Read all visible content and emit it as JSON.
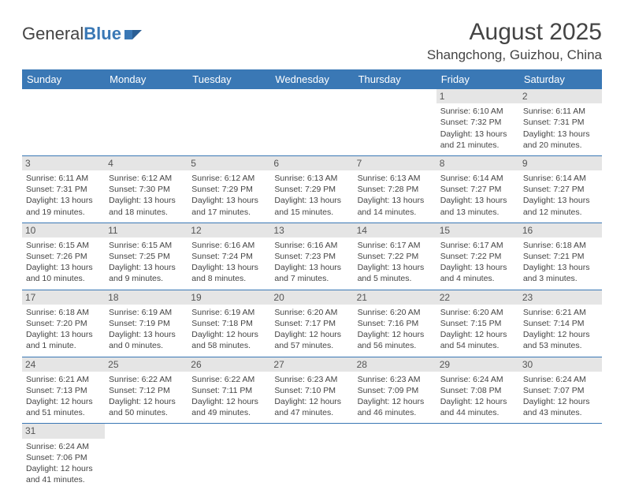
{
  "brand": {
    "part1": "General",
    "part2": "Blue"
  },
  "title": "August 2025",
  "location": "Shangchong, Guizhou, China",
  "colors": {
    "header_bg": "#3a78b5",
    "header_text": "#ffffff",
    "daynum_bg": "#e5e5e5",
    "border": "#3a78b5",
    "text": "#444444"
  },
  "weekdays": [
    "Sunday",
    "Monday",
    "Tuesday",
    "Wednesday",
    "Thursday",
    "Friday",
    "Saturday"
  ],
  "weeks": [
    [
      null,
      null,
      null,
      null,
      null,
      {
        "n": "1",
        "sr": "Sunrise: 6:10 AM",
        "ss": "Sunset: 7:32 PM",
        "d1": "Daylight: 13 hours",
        "d2": "and 21 minutes."
      },
      {
        "n": "2",
        "sr": "Sunrise: 6:11 AM",
        "ss": "Sunset: 7:31 PM",
        "d1": "Daylight: 13 hours",
        "d2": "and 20 minutes."
      }
    ],
    [
      {
        "n": "3",
        "sr": "Sunrise: 6:11 AM",
        "ss": "Sunset: 7:31 PM",
        "d1": "Daylight: 13 hours",
        "d2": "and 19 minutes."
      },
      {
        "n": "4",
        "sr": "Sunrise: 6:12 AM",
        "ss": "Sunset: 7:30 PM",
        "d1": "Daylight: 13 hours",
        "d2": "and 18 minutes."
      },
      {
        "n": "5",
        "sr": "Sunrise: 6:12 AM",
        "ss": "Sunset: 7:29 PM",
        "d1": "Daylight: 13 hours",
        "d2": "and 17 minutes."
      },
      {
        "n": "6",
        "sr": "Sunrise: 6:13 AM",
        "ss": "Sunset: 7:29 PM",
        "d1": "Daylight: 13 hours",
        "d2": "and 15 minutes."
      },
      {
        "n": "7",
        "sr": "Sunrise: 6:13 AM",
        "ss": "Sunset: 7:28 PM",
        "d1": "Daylight: 13 hours",
        "d2": "and 14 minutes."
      },
      {
        "n": "8",
        "sr": "Sunrise: 6:14 AM",
        "ss": "Sunset: 7:27 PM",
        "d1": "Daylight: 13 hours",
        "d2": "and 13 minutes."
      },
      {
        "n": "9",
        "sr": "Sunrise: 6:14 AM",
        "ss": "Sunset: 7:27 PM",
        "d1": "Daylight: 13 hours",
        "d2": "and 12 minutes."
      }
    ],
    [
      {
        "n": "10",
        "sr": "Sunrise: 6:15 AM",
        "ss": "Sunset: 7:26 PM",
        "d1": "Daylight: 13 hours",
        "d2": "and 10 minutes."
      },
      {
        "n": "11",
        "sr": "Sunrise: 6:15 AM",
        "ss": "Sunset: 7:25 PM",
        "d1": "Daylight: 13 hours",
        "d2": "and 9 minutes."
      },
      {
        "n": "12",
        "sr": "Sunrise: 6:16 AM",
        "ss": "Sunset: 7:24 PM",
        "d1": "Daylight: 13 hours",
        "d2": "and 8 minutes."
      },
      {
        "n": "13",
        "sr": "Sunrise: 6:16 AM",
        "ss": "Sunset: 7:23 PM",
        "d1": "Daylight: 13 hours",
        "d2": "and 7 minutes."
      },
      {
        "n": "14",
        "sr": "Sunrise: 6:17 AM",
        "ss": "Sunset: 7:22 PM",
        "d1": "Daylight: 13 hours",
        "d2": "and 5 minutes."
      },
      {
        "n": "15",
        "sr": "Sunrise: 6:17 AM",
        "ss": "Sunset: 7:22 PM",
        "d1": "Daylight: 13 hours",
        "d2": "and 4 minutes."
      },
      {
        "n": "16",
        "sr": "Sunrise: 6:18 AM",
        "ss": "Sunset: 7:21 PM",
        "d1": "Daylight: 13 hours",
        "d2": "and 3 minutes."
      }
    ],
    [
      {
        "n": "17",
        "sr": "Sunrise: 6:18 AM",
        "ss": "Sunset: 7:20 PM",
        "d1": "Daylight: 13 hours",
        "d2": "and 1 minute."
      },
      {
        "n": "18",
        "sr": "Sunrise: 6:19 AM",
        "ss": "Sunset: 7:19 PM",
        "d1": "Daylight: 13 hours",
        "d2": "and 0 minutes."
      },
      {
        "n": "19",
        "sr": "Sunrise: 6:19 AM",
        "ss": "Sunset: 7:18 PM",
        "d1": "Daylight: 12 hours",
        "d2": "and 58 minutes."
      },
      {
        "n": "20",
        "sr": "Sunrise: 6:20 AM",
        "ss": "Sunset: 7:17 PM",
        "d1": "Daylight: 12 hours",
        "d2": "and 57 minutes."
      },
      {
        "n": "21",
        "sr": "Sunrise: 6:20 AM",
        "ss": "Sunset: 7:16 PM",
        "d1": "Daylight: 12 hours",
        "d2": "and 56 minutes."
      },
      {
        "n": "22",
        "sr": "Sunrise: 6:20 AM",
        "ss": "Sunset: 7:15 PM",
        "d1": "Daylight: 12 hours",
        "d2": "and 54 minutes."
      },
      {
        "n": "23",
        "sr": "Sunrise: 6:21 AM",
        "ss": "Sunset: 7:14 PM",
        "d1": "Daylight: 12 hours",
        "d2": "and 53 minutes."
      }
    ],
    [
      {
        "n": "24",
        "sr": "Sunrise: 6:21 AM",
        "ss": "Sunset: 7:13 PM",
        "d1": "Daylight: 12 hours",
        "d2": "and 51 minutes."
      },
      {
        "n": "25",
        "sr": "Sunrise: 6:22 AM",
        "ss": "Sunset: 7:12 PM",
        "d1": "Daylight: 12 hours",
        "d2": "and 50 minutes."
      },
      {
        "n": "26",
        "sr": "Sunrise: 6:22 AM",
        "ss": "Sunset: 7:11 PM",
        "d1": "Daylight: 12 hours",
        "d2": "and 49 minutes."
      },
      {
        "n": "27",
        "sr": "Sunrise: 6:23 AM",
        "ss": "Sunset: 7:10 PM",
        "d1": "Daylight: 12 hours",
        "d2": "and 47 minutes."
      },
      {
        "n": "28",
        "sr": "Sunrise: 6:23 AM",
        "ss": "Sunset: 7:09 PM",
        "d1": "Daylight: 12 hours",
        "d2": "and 46 minutes."
      },
      {
        "n": "29",
        "sr": "Sunrise: 6:24 AM",
        "ss": "Sunset: 7:08 PM",
        "d1": "Daylight: 12 hours",
        "d2": "and 44 minutes."
      },
      {
        "n": "30",
        "sr": "Sunrise: 6:24 AM",
        "ss": "Sunset: 7:07 PM",
        "d1": "Daylight: 12 hours",
        "d2": "and 43 minutes."
      }
    ],
    [
      {
        "n": "31",
        "sr": "Sunrise: 6:24 AM",
        "ss": "Sunset: 7:06 PM",
        "d1": "Daylight: 12 hours",
        "d2": "and 41 minutes."
      },
      null,
      null,
      null,
      null,
      null,
      null
    ]
  ]
}
